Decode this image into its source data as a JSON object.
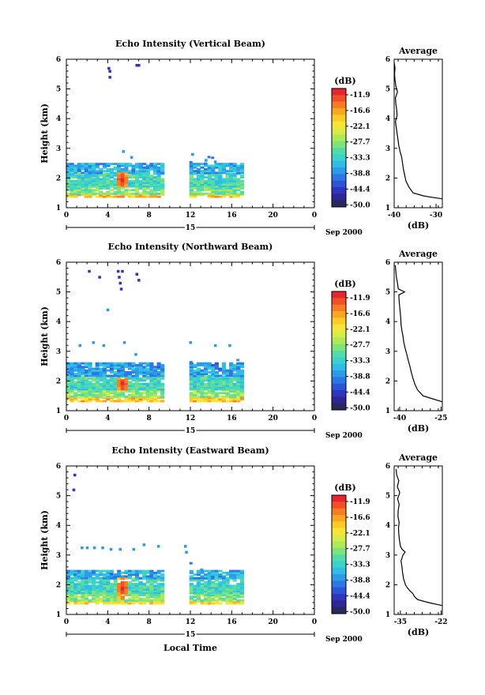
{
  "colorbar": {
    "unit": "(dB)",
    "labels": [
      "-11.9",
      "-16.6",
      "-22.1",
      "-27.7",
      "-33.3",
      "-38.8",
      "-44.4",
      "-50.0"
    ],
    "colors": [
      "#e8242c",
      "#f24e28",
      "#f77c22",
      "#faa620",
      "#fccc24",
      "#f6e437",
      "#d9ec45",
      "#aeea58",
      "#7ee47a",
      "#52dca7",
      "#3ad2cf",
      "#2fbde6",
      "#2c9bea",
      "#2b78e5",
      "#2c54d6",
      "#2f35be",
      "#2e2596",
      "#282a5c"
    ]
  },
  "chart_data": [
    {
      "type": "heatmap",
      "title": "Echo Intensity (Vertical Beam)",
      "ylabel": "Height (km)",
      "xlabel": "",
      "xlim": [
        0,
        24
      ],
      "ylim": [
        1,
        6
      ],
      "xticks": [
        "0",
        "4",
        "8",
        "12",
        "16",
        "20",
        "0"
      ],
      "yticks": [
        "1",
        "2",
        "3",
        "4",
        "5",
        "6"
      ],
      "date_label": "15",
      "month_label": "Sep 2000",
      "profile": {
        "title": "Average",
        "xlabel": "(dB)",
        "xticks": [
          "-40",
          "-30"
        ],
        "xlim": [
          -40,
          -28.5
        ],
        "heights": [
          1.3,
          1.35,
          1.4,
          1.5,
          1.7,
          1.9,
          2.1,
          2.3,
          2.5,
          2.7,
          2.9,
          3.1,
          3.3,
          3.5,
          3.7,
          3.9,
          4.1,
          4.3,
          4.5,
          4.7,
          4.9,
          5.1,
          5.3,
          5.5,
          5.7,
          5.9
        ],
        "values": [
          -28.6,
          -31,
          -33,
          -35.5,
          -36.5,
          -37.2,
          -37.5,
          -37.8,
          -38.0,
          -38.2,
          -38.6,
          -38.9,
          -39.1,
          -39.3,
          -39.5,
          -39.7,
          -39.3,
          -39.4,
          -39.6,
          -39.7,
          -39.2,
          -39.6,
          -39.8,
          -39.9,
          -39.8,
          -40
        ]
      },
      "echo": {
        "gap": [
          9.2,
          11.8
        ],
        "end": 16.9,
        "layers": [
          {
            "h0": 1.35,
            "h1": 1.45,
            "db": -20
          },
          {
            "h0": 1.45,
            "h1": 1.7,
            "db": -30
          },
          {
            "h0": 1.7,
            "h1": 2.15,
            "db": -33
          },
          {
            "h0": 2.15,
            "h1": 2.5,
            "db": -37
          }
        ],
        "core": {
          "t": 5.2,
          "h0": 1.7,
          "h1": 2.15
        },
        "specks": [
          [
            4.1,
            5.7
          ],
          [
            4.2,
            5.6
          ],
          [
            4.2,
            5.4
          ],
          [
            6.8,
            5.8
          ],
          [
            7.0,
            5.8
          ],
          [
            5.5,
            2.9
          ],
          [
            6.3,
            2.7
          ],
          [
            12.2,
            2.8
          ],
          [
            13.5,
            2.6
          ],
          [
            14.4,
            2.55
          ]
        ]
      }
    },
    {
      "type": "heatmap",
      "title": "Echo Intensity (Northward Beam)",
      "ylabel": "Height (km)",
      "xlabel": "",
      "xlim": [
        0,
        24
      ],
      "ylim": [
        1,
        6
      ],
      "xticks": [
        "0",
        "4",
        "8",
        "12",
        "16",
        "20",
        "0"
      ],
      "yticks": [
        "1",
        "2",
        "3",
        "4",
        "5",
        "6"
      ],
      "date_label": "15",
      "month_label": "Sep 2000",
      "profile": {
        "title": "Average",
        "xlabel": "(dB)",
        "xticks": [
          "-40",
          "-25"
        ],
        "xlim": [
          -42,
          -24.5
        ],
        "heights": [
          1.3,
          1.4,
          1.5,
          1.7,
          1.9,
          2.1,
          2.3,
          2.5,
          2.7,
          2.9,
          3.1,
          3.3,
          3.5,
          3.7,
          3.9,
          4.1,
          4.3,
          4.5,
          4.7,
          4.9,
          5.0,
          5.1,
          5.3,
          5.5,
          5.7,
          5.9
        ],
        "values": [
          -24.6,
          -28,
          -31.5,
          -33.5,
          -34.5,
          -35.2,
          -35.8,
          -36.3,
          -36.9,
          -37.4,
          -38,
          -38.5,
          -38.8,
          -39.2,
          -39.5,
          -39.6,
          -39.8,
          -40.0,
          -40.2,
          -40.3,
          -38.2,
          -40.5,
          -40.8,
          -41.2,
          -41.4,
          -41.6
        ]
      },
      "echo": {
        "gap": [
          9.2,
          11.8
        ],
        "end": 16.9,
        "layers": [
          {
            "h0": 1.3,
            "h1": 1.45,
            "db": -20
          },
          {
            "h0": 1.45,
            "h1": 1.7,
            "db": -29
          },
          {
            "h0": 1.7,
            "h1": 2.15,
            "db": -33
          },
          {
            "h0": 2.15,
            "h1": 2.6,
            "db": -38
          }
        ],
        "core": {
          "t": 5.3,
          "h0": 1.7,
          "h1": 2.1
        },
        "specks": [
          [
            2.2,
            5.7
          ],
          [
            3.2,
            5.5
          ],
          [
            4.0,
            4.4
          ],
          [
            5.0,
            5.7
          ],
          [
            5.1,
            5.5
          ],
          [
            5.2,
            5.3
          ],
          [
            5.3,
            5.1
          ],
          [
            5.4,
            5.7
          ],
          [
            6.8,
            5.6
          ],
          [
            7.0,
            5.4
          ],
          [
            1.3,
            3.2
          ],
          [
            2.6,
            3.3
          ],
          [
            3.6,
            3.2
          ],
          [
            5.6,
            3.3
          ],
          [
            12.0,
            3.3
          ],
          [
            14.4,
            3.2
          ],
          [
            15.8,
            3.2
          ],
          [
            6.7,
            2.9
          ]
        ]
      }
    },
    {
      "type": "heatmap",
      "title": "Echo Intensity (Eastward Beam)",
      "ylabel": "Height (km)",
      "xlabel": "Local Time",
      "xlim": [
        0,
        24
      ],
      "ylim": [
        1,
        6
      ],
      "xticks": [
        "0",
        "4",
        "8",
        "12",
        "16",
        "20",
        "0"
      ],
      "yticks": [
        "1",
        "2",
        "3",
        "4",
        "5",
        "6"
      ],
      "date_label": "15",
      "month_label": "Sep 2000",
      "profile": {
        "title": "Average",
        "xlabel": "(dB)",
        "xticks": [
          "-35",
          "-22"
        ],
        "xlim": [
          -37,
          -21.6
        ],
        "heights": [
          1.3,
          1.4,
          1.5,
          1.6,
          1.7,
          1.8,
          1.9,
          2.0,
          2.2,
          2.4,
          2.6,
          2.8,
          3.0,
          3.1,
          3.2,
          3.3,
          3.5,
          3.7,
          3.9,
          4.1,
          4.3,
          4.5,
          4.7,
          4.9,
          5.1,
          5.3,
          5.5,
          5.7,
          5.9
        ],
        "values": [
          -21.7,
          -26,
          -29.5,
          -30.5,
          -31,
          -32,
          -32.8,
          -33.4,
          -34,
          -34.3,
          -34.5,
          -34.8,
          -34.2,
          -33.5,
          -34.5,
          -35,
          -35.3,
          -35.5,
          -35.6,
          -35.4,
          -35.8,
          -35.7,
          -35.4,
          -35.9,
          -35.2,
          -36,
          -35.5,
          -36.2,
          -36.4
        ]
      },
      "echo": {
        "gap": [
          9.2,
          11.8
        ],
        "end": 16.9,
        "layers": [
          {
            "h0": 1.35,
            "h1": 1.45,
            "db": -21
          },
          {
            "h0": 1.45,
            "h1": 1.7,
            "db": -29
          },
          {
            "h0": 1.7,
            "h1": 2.2,
            "db": -33
          },
          {
            "h0": 2.2,
            "h1": 2.5,
            "db": -37
          }
        ],
        "core": {
          "t": 5.3,
          "h0": 1.5,
          "h1": 2.25
        },
        "specks": [
          [
            0.8,
            5.7
          ],
          [
            0.7,
            5.2
          ],
          [
            1.5,
            3.25
          ],
          [
            2.0,
            3.25
          ],
          [
            2.7,
            3.25
          ],
          [
            3.5,
            3.25
          ],
          [
            4.3,
            3.2
          ],
          [
            5.2,
            3.2
          ],
          [
            6.5,
            3.2
          ],
          [
            7.5,
            3.35
          ],
          [
            8.9,
            3.3
          ],
          [
            11.5,
            3.3
          ],
          [
            11.6,
            3.1
          ]
        ]
      }
    }
  ]
}
